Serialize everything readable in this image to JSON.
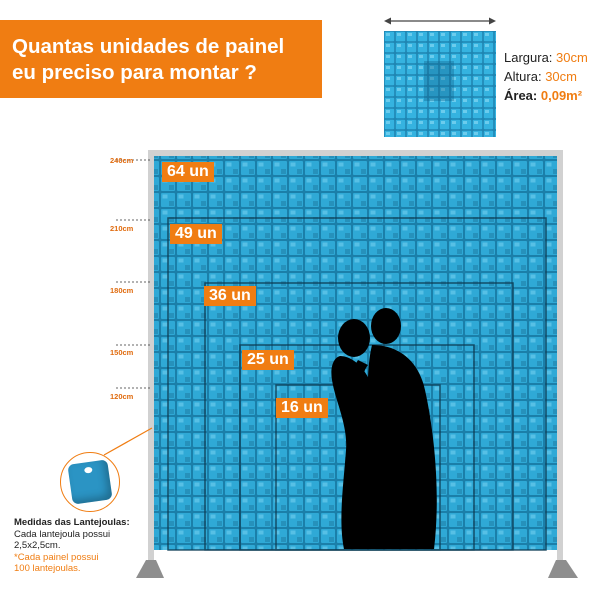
{
  "title": {
    "line1": "Quantas unidades de painel",
    "line2": "eu preciso para montar ?"
  },
  "sample_panel": {
    "width_label": "Largura:",
    "width_value": "30cm",
    "height_label": "Altura:",
    "height_value": "30cm",
    "area_label": "Área:",
    "area_value": "0,09m²"
  },
  "heights": [
    "240cm",
    "210cm",
    "180cm",
    "150cm",
    "120cm"
  ],
  "units": [
    "64 un",
    "49 un",
    "36 un",
    "25 un",
    "16 un"
  ],
  "notes": {
    "heading": "Medidas das Lantejoulas:",
    "line1": "Cada lantejoula possui",
    "line2": "2,5x2,5cm.",
    "line3": "*Cada painel possui",
    "line4": "100 lantejoulas."
  },
  "colors": {
    "accent": "#f07d12",
    "sequin_blue": "#27a1cf",
    "frame": "#c9c9c9"
  }
}
